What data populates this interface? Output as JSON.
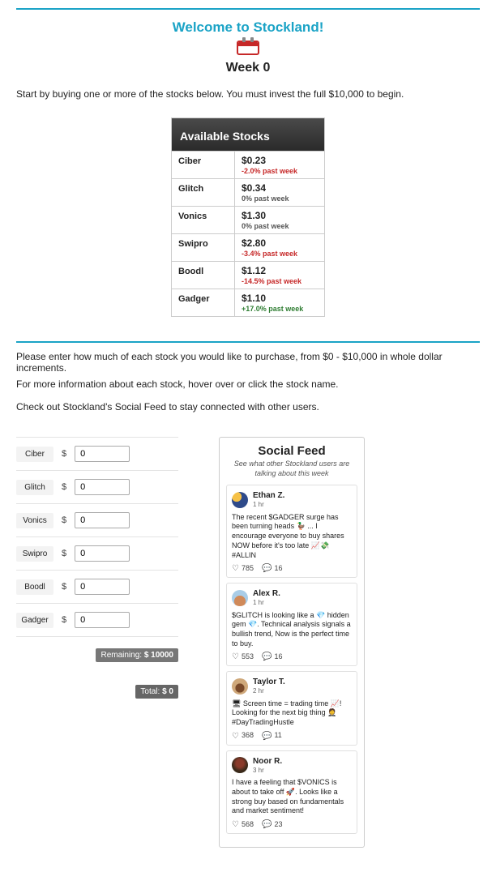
{
  "header": {
    "title": "Welcome to Stockland!",
    "week_label": "Week 0"
  },
  "intro": "Start by buying one or more of the stocks below. You must invest the full $10,000 to begin.",
  "stocks_panel": {
    "title": "Available Stocks",
    "rows": [
      {
        "name": "Ciber",
        "price": "$0.23",
        "change": "-2.0% past week",
        "change_class": "neg"
      },
      {
        "name": "Glitch",
        "price": "$0.34",
        "change": "0% past week",
        "change_class": "neu"
      },
      {
        "name": "Vonics",
        "price": "$1.30",
        "change": "0% past week",
        "change_class": "neu"
      },
      {
        "name": "Swipro",
        "price": "$2.80",
        "change": "-3.4% past week",
        "change_class": "neg"
      },
      {
        "name": "Boodl",
        "price": "$1.12",
        "change": "-14.5% past week",
        "change_class": "neg"
      },
      {
        "name": "Gadger",
        "price": "$1.10",
        "change": "+17.0% past week",
        "change_class": "pos"
      }
    ]
  },
  "instructions": {
    "line1": "Please enter how much of each stock you would like to purchase, from $0 - $10,000 in whole dollar increments.",
    "line2": "For more information about each stock, hover over or click the stock name.",
    "line3": "Check out Stockland's Social Feed to stay connected with other users."
  },
  "inputs": [
    {
      "label": "Ciber",
      "value": "0"
    },
    {
      "label": "Glitch",
      "value": "0"
    },
    {
      "label": "Vonics",
      "value": "0"
    },
    {
      "label": "Swipro",
      "value": "0"
    },
    {
      "label": "Boodl",
      "value": "0"
    },
    {
      "label": "Gadger",
      "value": "0"
    }
  ],
  "summary": {
    "remaining_label": "Remaining:",
    "remaining_value": "$ 10000",
    "total_label": "Total:",
    "total_value": "$ 0"
  },
  "dollar_sign": "$",
  "feed": {
    "title": "Social Feed",
    "subtitle": "See what other Stockland users are talking about this week",
    "posts": [
      {
        "user": "Ethan Z.",
        "time": "1 hr",
        "avatar_class": "av1",
        "body": "The recent $GADGER surge has been turning heads 🦆 ... I encourage everyone to buy shares NOW before it's too late 📈💸 #ALLIN",
        "likes": "785",
        "comments": "16"
      },
      {
        "user": "Alex R.",
        "time": "1 hr",
        "avatar_class": "av2",
        "body": "$GLITCH is looking like a 💎 hidden gem 💎. Technical analysis signals a bullish trend, Now is the perfect time to buy.",
        "likes": "553",
        "comments": "16"
      },
      {
        "user": "Taylor T.",
        "time": "2 hr",
        "avatar_class": "av3",
        "body": "🖥 Screen time = trading time 📈! Looking for the next big thing 🤵 #DayTradingHustle",
        "likes": "368",
        "comments": "11"
      },
      {
        "user": "Noor R.",
        "time": "3 hr",
        "avatar_class": "av4",
        "body": "I have a feeling that $VONICS is about to take off 🚀. Looks like a strong buy based on fundamentals and market sentiment!",
        "likes": "568",
        "comments": "23"
      }
    ]
  }
}
